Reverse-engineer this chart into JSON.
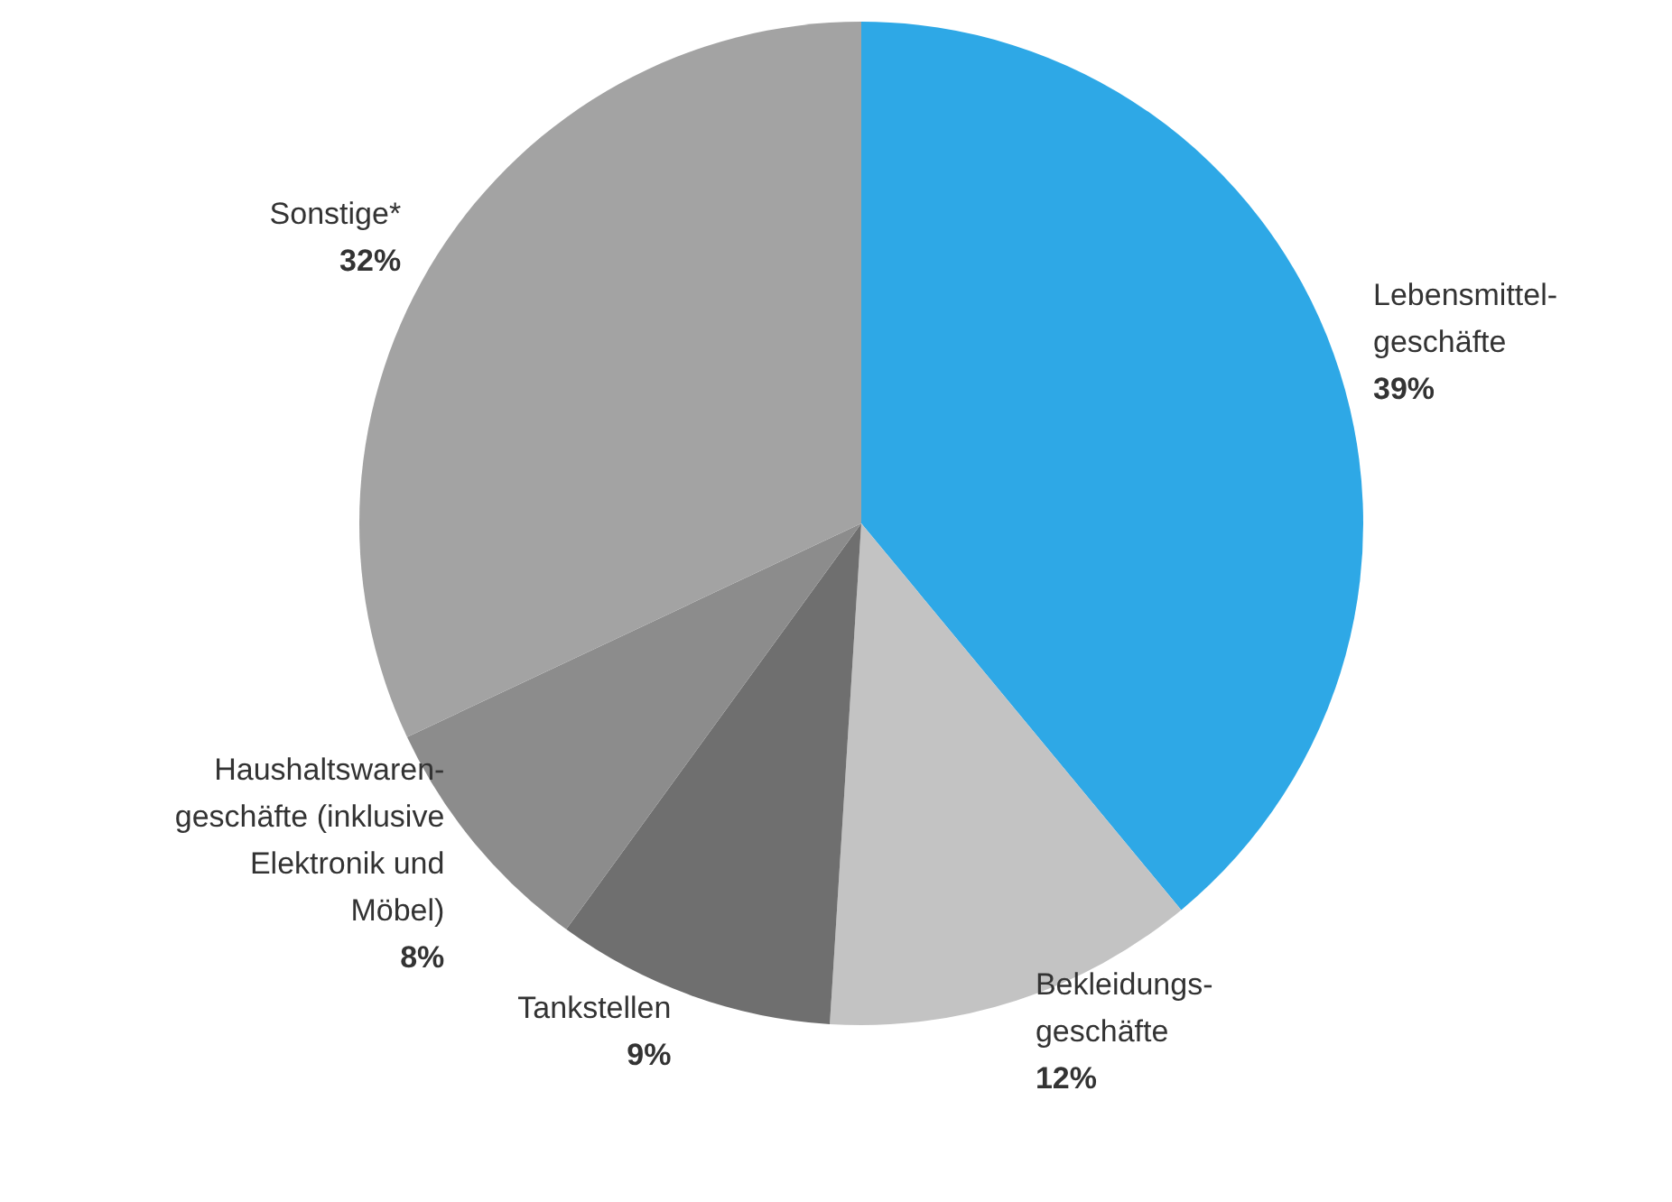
{
  "chart_data": {
    "type": "pie",
    "categories": [
      "Lebensmittel-\ngeschäfte",
      "Bekleidungs-\ngeschäfte",
      "Tankstellen",
      "Haushaltswaren-\ngeschäfte (inklusive\nElektronik und\nMöbel)",
      "Sonstige*"
    ],
    "values": [
      39,
      12,
      9,
      8,
      32
    ],
    "colors": [
      "#2ea8e6",
      "#c3c3c3",
      "#6f6f6f",
      "#8c8c8c",
      "#a3a3a3"
    ],
    "value_labels": [
      "39%",
      "12%",
      "9%",
      "8%",
      "32%"
    ],
    "legend": false
  }
}
